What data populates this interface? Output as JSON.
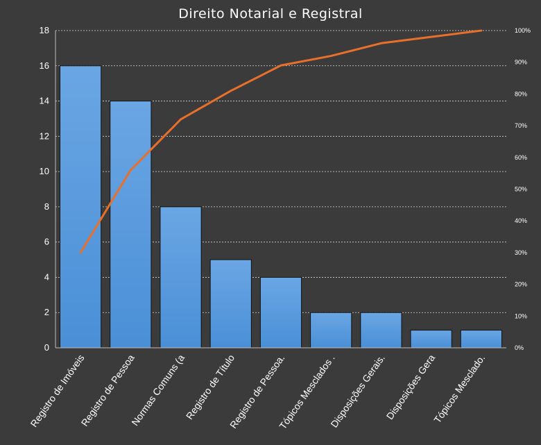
{
  "chart_data": {
    "type": "bar",
    "title": "Direito Notarial e Registral",
    "categories": [
      "Registro de Imóveis",
      "Registro de Pessoa",
      "Normas Comuns (a",
      "Registro de Título",
      "Registro de Pessoa.",
      "Tópicos Mesclados .",
      "Disposições Gerais.",
      "Disposições Gera",
      "Tópicos Mesclado."
    ],
    "series": [
      {
        "type": "bar",
        "values": [
          16,
          14,
          8,
          5,
          4,
          2,
          2,
          1,
          1
        ]
      },
      {
        "type": "line",
        "axis": "secondary",
        "values": [
          30,
          56,
          72,
          81,
          89,
          92,
          96,
          98,
          100
        ]
      }
    ],
    "ylim": [
      0,
      18
    ],
    "yticks": [
      0,
      2,
      4,
      6,
      8,
      10,
      12,
      14,
      16,
      18
    ],
    "y2lim": [
      0,
      100
    ],
    "y2ticks": [
      "0%",
      "10%",
      "20%",
      "30%",
      "40%",
      "50%",
      "60%",
      "70%",
      "80%",
      "90%",
      "100%"
    ],
    "grid": true,
    "colors": {
      "bar": "#4a8fd6",
      "bar_light": "#6aa6e4",
      "line": "#e8702a",
      "background": "#3b3b3b"
    }
  }
}
